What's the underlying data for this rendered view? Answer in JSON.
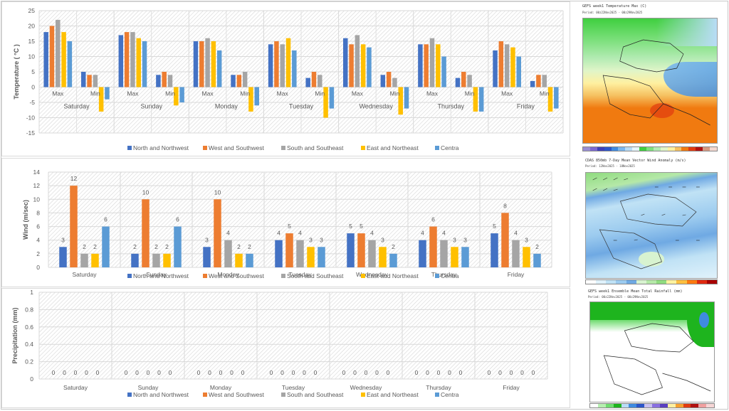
{
  "colors": {
    "series": [
      "#4472C4",
      "#ED7D31",
      "#A5A5A5",
      "#FFC000",
      "#5B9BD5"
    ]
  },
  "legend": [
    "North and Northwest",
    "West and Southwest",
    "South and Southeast",
    "East and Northeast",
    "Centra"
  ],
  "chart_data": [
    {
      "type": "bar",
      "title": "",
      "ylabel": "Temperature ( °C )",
      "xlabel": "",
      "ylim": [
        -15,
        25
      ],
      "yticks": [
        25,
        20,
        15,
        10,
        5,
        0,
        -5,
        -10,
        -15
      ],
      "grid": true,
      "legend_position": "bottom",
      "days": [
        "Saturday",
        "Sunday",
        "Monday",
        "Tuesday",
        "Wednesday",
        "Thursday",
        "Friday"
      ],
      "subcategories": [
        "Max",
        "Min"
      ],
      "series": [
        {
          "name": "North and Northwest",
          "max": [
            18,
            17,
            15,
            14,
            16,
            14,
            12
          ],
          "min": [
            5,
            4,
            4,
            3,
            4,
            3,
            2
          ]
        },
        {
          "name": "West and Southwest",
          "max": [
            20,
            18,
            15,
            15,
            14,
            14,
            15
          ],
          "min": [
            4,
            5,
            4,
            5,
            5,
            5,
            4
          ]
        },
        {
          "name": "South and Southeast",
          "max": [
            22,
            18,
            16,
            14,
            17,
            16,
            14
          ],
          "min": [
            4,
            4,
            5,
            4,
            3,
            4,
            4
          ]
        },
        {
          "name": "East and Northeast",
          "max": [
            18,
            16,
            15,
            16,
            14,
            14,
            13
          ],
          "min": [
            -8,
            -6,
            -8,
            -10,
            -9,
            -8,
            -8
          ]
        },
        {
          "name": "Centra",
          "max": [
            15,
            15,
            12,
            12,
            13,
            10,
            10
          ],
          "min": [
            -4,
            -5,
            -6,
            -7,
            -7,
            -8,
            -7
          ]
        }
      ]
    },
    {
      "type": "bar",
      "title": "",
      "ylabel": "Wind (m/sec)",
      "xlabel": "",
      "ylim": [
        0,
        14
      ],
      "yticks": [
        14,
        12,
        10,
        8,
        6,
        4,
        2,
        0
      ],
      "grid": true,
      "data_labels": true,
      "legend_position": "bottom",
      "categories": [
        "Saturday",
        "Sunday",
        "Monday",
        "Tuesday",
        "Wednesday",
        "Thursday",
        "Friday"
      ],
      "series": [
        {
          "name": "North and Northwest",
          "values": [
            3,
            2,
            3,
            4,
            5,
            4,
            5
          ]
        },
        {
          "name": "West and Southwest",
          "values": [
            12,
            10,
            10,
            5,
            5,
            6,
            8
          ]
        },
        {
          "name": "South and Southeast",
          "values": [
            2,
            2,
            4,
            4,
            4,
            4,
            4
          ]
        },
        {
          "name": "East and Northeast",
          "values": [
            2,
            2,
            2,
            3,
            3,
            3,
            3
          ]
        },
        {
          "name": "Centra",
          "values": [
            6,
            6,
            2,
            3,
            2,
            3,
            2
          ]
        }
      ]
    },
    {
      "type": "bar",
      "title": "",
      "ylabel": "Precipitation (mm)",
      "xlabel": "",
      "ylim": [
        0,
        1
      ],
      "yticks": [
        "1",
        "0.8",
        "0.6",
        "0.4",
        "0.2",
        "0"
      ],
      "grid": true,
      "data_labels": true,
      "legend_position": "bottom",
      "categories": [
        "Saturday",
        "Sunday",
        "Monday",
        "Tuesday",
        "Wednesday",
        "Thursday",
        "Friday"
      ],
      "series": [
        {
          "name": "North and Northwest",
          "values": [
            0,
            0,
            0,
            0,
            0,
            0,
            0
          ]
        },
        {
          "name": "West and Southwest",
          "values": [
            0,
            0,
            0,
            0,
            0,
            0,
            0
          ]
        },
        {
          "name": "South and Southeast",
          "values": [
            0,
            0,
            0,
            0,
            0,
            0,
            0
          ]
        },
        {
          "name": "East and Northeast",
          "values": [
            0,
            0,
            0,
            0,
            0,
            0,
            0
          ]
        },
        {
          "name": "Centra",
          "values": [
            0,
            0,
            0,
            0,
            0,
            0,
            0
          ]
        }
      ]
    }
  ],
  "maps": [
    {
      "title": "GEFS week1 Temperature Max (C)",
      "period": "Period: 00z22Nov2025 - 00z29Nov2025",
      "colorbar": [
        "#9a8fd6",
        "#7b68d0",
        "#3d3fb8",
        "#2b55c9",
        "#3f8be0",
        "#7ab7ef",
        "#b8dcf6",
        "#e6f5fb",
        "#3fcf3f",
        "#7ee07e",
        "#b3ebb3",
        "#e0f5c8",
        "#fff0a0",
        "#f5c060",
        "#f07a10",
        "#e03a10",
        "#b01010",
        "#d69a80",
        "#f4d8d0"
      ]
    },
    {
      "title": "CDAS 850mb 7-Day Mean Vector Wind Anomaly (m/s)",
      "period": "Period: 12Nov2025 - 18Nov2025",
      "colorbar": [
        "#ffffff",
        "#e0f2fb",
        "#c0e2f5",
        "#9ccbef",
        "#6fa9e3",
        "#d8f3d0",
        "#b5e8a8",
        "#8fdb7f",
        "#fff3a0",
        "#ffc040",
        "#ff7a10",
        "#e02a10",
        "#a80000"
      ]
    },
    {
      "title": "GEFS week1 Ensemble Mean Total Rainfall (mm)",
      "period": "Period: 00z22Nov2025 - 00z29Nov2025",
      "colorbar": [
        "#ffffff",
        "#b6efb0",
        "#6fdc6f",
        "#1eb41e",
        "#b8dcf6",
        "#3f8be0",
        "#2b55c9",
        "#c8c0f0",
        "#8a70e0",
        "#5a3fc0",
        "#fff0a0",
        "#f5a030",
        "#e03a10",
        "#b01010",
        "#f0a0a0",
        "#f6d6d6"
      ]
    }
  ]
}
